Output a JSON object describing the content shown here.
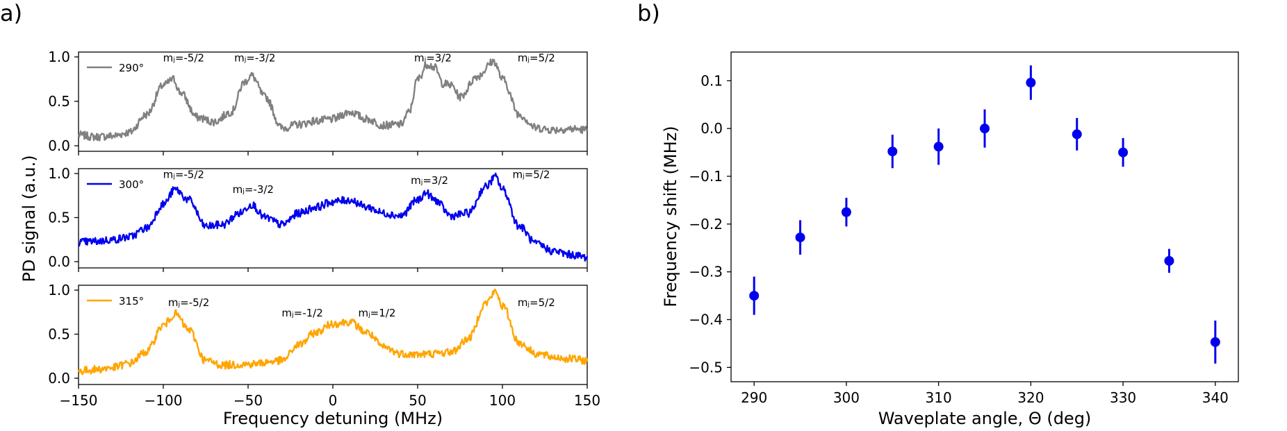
{
  "panels": {
    "a": "a)",
    "b": "b)"
  },
  "chart_data": [
    {
      "type": "line",
      "panel": "a",
      "xlabel": "Frequency detuning (MHz)",
      "ylabel": "PD signal (a.u.)",
      "xlim": [
        -150,
        150
      ],
      "ylim": [
        0,
        1
      ],
      "xticks": [
        -150,
        -100,
        -50,
        0,
        50,
        100,
        150
      ],
      "xtick_labels": [
        "−150",
        "−100",
        "−50",
        "0",
        "50",
        "100",
        "150"
      ],
      "yticks": [
        0.0,
        0.5,
        1.0
      ],
      "ytick_labels": [
        "0.0",
        "0.5",
        "1.0"
      ],
      "grid": false,
      "legend_placement": "top-left",
      "subplots": [
        {
          "series_name": "290°",
          "color": "#808080",
          "annotations": [
            {
              "text": "mⱼ=-5/2",
              "x": -88,
              "y": 0.95
            },
            {
              "text": "mⱼ=-3/2",
              "x": -46,
              "y": 0.95
            },
            {
              "text": "mⱼ=3/2",
              "x": 59,
              "y": 0.95
            },
            {
              "text": "mⱼ=5/2",
              "x": 120,
              "y": 0.95
            }
          ],
          "x": [
            -150,
            -140,
            -130,
            -120,
            -110,
            -100,
            -94,
            -90,
            -80,
            -70,
            -60,
            -52,
            -48,
            -40,
            -30,
            -20,
            -10,
            0,
            10,
            20,
            30,
            40,
            45,
            50,
            56,
            60,
            65,
            70,
            75,
            85,
            95,
            100,
            110,
            120,
            130,
            140,
            150
          ],
          "y": [
            0.12,
            0.1,
            0.11,
            0.15,
            0.35,
            0.68,
            0.75,
            0.6,
            0.32,
            0.27,
            0.38,
            0.72,
            0.79,
            0.55,
            0.2,
            0.24,
            0.28,
            0.3,
            0.38,
            0.3,
            0.23,
            0.24,
            0.38,
            0.75,
            0.92,
            0.88,
            0.7,
            0.68,
            0.55,
            0.78,
            0.95,
            0.75,
            0.35,
            0.2,
            0.18,
            0.19,
            0.18
          ]
        },
        {
          "series_name": "300°",
          "color": "#0000ee",
          "annotations": [
            {
              "text": "mⱼ=-5/2",
              "x": -88,
              "y": 0.95
            },
            {
              "text": "mⱼ=-3/2",
              "x": -47,
              "y": 0.78
            },
            {
              "text": "mⱼ=3/2",
              "x": 57,
              "y": 0.88
            },
            {
              "text": "mⱼ=5/2",
              "x": 117,
              "y": 0.95
            }
          ],
          "x": [
            -150,
            -140,
            -130,
            -120,
            -110,
            -100,
            -93,
            -85,
            -75,
            -65,
            -55,
            -48,
            -40,
            -30,
            -20,
            -10,
            0,
            10,
            20,
            30,
            40,
            50,
            55,
            60,
            70,
            80,
            90,
            96,
            100,
            110,
            120,
            130,
            140,
            150
          ],
          "y": [
            0.22,
            0.23,
            0.25,
            0.28,
            0.38,
            0.65,
            0.82,
            0.7,
            0.4,
            0.42,
            0.55,
            0.65,
            0.5,
            0.42,
            0.55,
            0.62,
            0.68,
            0.7,
            0.62,
            0.55,
            0.52,
            0.7,
            0.78,
            0.7,
            0.52,
            0.55,
            0.85,
            0.96,
            0.82,
            0.4,
            0.2,
            0.12,
            0.08,
            0.05
          ]
        },
        {
          "series_name": "315°",
          "color": "#ffa500",
          "annotations": [
            {
              "text": "mⱼ=-5/2",
              "x": -85,
              "y": 0.82
            },
            {
              "text": "mⱼ=-1/2",
              "x": -18,
              "y": 0.7
            },
            {
              "text": "mⱼ=1/2",
              "x": 26,
              "y": 0.7
            },
            {
              "text": "mⱼ=5/2",
              "x": 120,
              "y": 0.82
            }
          ],
          "x": [
            -150,
            -140,
            -130,
            -120,
            -110,
            -100,
            -93,
            -85,
            -75,
            -65,
            -50,
            -30,
            -20,
            -10,
            0,
            10,
            20,
            30,
            40,
            50,
            60,
            70,
            80,
            90,
            96,
            100,
            110,
            120,
            130,
            140,
            150
          ],
          "y": [
            0.08,
            0.1,
            0.12,
            0.17,
            0.3,
            0.6,
            0.73,
            0.55,
            0.2,
            0.15,
            0.16,
            0.2,
            0.38,
            0.52,
            0.62,
            0.64,
            0.52,
            0.35,
            0.28,
            0.27,
            0.28,
            0.3,
            0.45,
            0.85,
            0.98,
            0.82,
            0.4,
            0.28,
            0.24,
            0.22,
            0.2
          ]
        }
      ]
    },
    {
      "type": "scatter",
      "panel": "b",
      "xlabel": "Waveplate angle, Θ (deg)",
      "ylabel": "Frequency shift (MHz)",
      "xlim": [
        287.5,
        342.5
      ],
      "ylim": [
        -0.53,
        0.16
      ],
      "xticks": [
        290,
        300,
        310,
        320,
        330,
        340
      ],
      "xtick_labels": [
        "290",
        "300",
        "310",
        "320",
        "330",
        "340"
      ],
      "yticks": [
        -0.5,
        -0.4,
        -0.3,
        -0.2,
        -0.1,
        0.0,
        0.1
      ],
      "ytick_labels": [
        "−0.5",
        "−0.4",
        "−0.3",
        "−0.2",
        "−0.1",
        "0.0",
        "0.1"
      ],
      "grid": false,
      "color": "#0000ee",
      "points": [
        {
          "x": 290,
          "y": -0.35,
          "err": 0.04
        },
        {
          "x": 295,
          "y": -0.228,
          "err": 0.036
        },
        {
          "x": 300,
          "y": -0.175,
          "err": 0.03
        },
        {
          "x": 305,
          "y": -0.048,
          "err": 0.035
        },
        {
          "x": 310,
          "y": -0.038,
          "err": 0.038
        },
        {
          "x": 315,
          "y": 0.0,
          "err": 0.04
        },
        {
          "x": 320,
          "y": 0.096,
          "err": 0.036
        },
        {
          "x": 325,
          "y": -0.012,
          "err": 0.034
        },
        {
          "x": 330,
          "y": -0.05,
          "err": 0.03
        },
        {
          "x": 335,
          "y": -0.277,
          "err": 0.025
        },
        {
          "x": 340,
          "y": -0.447,
          "err": 0.045
        }
      ]
    }
  ]
}
